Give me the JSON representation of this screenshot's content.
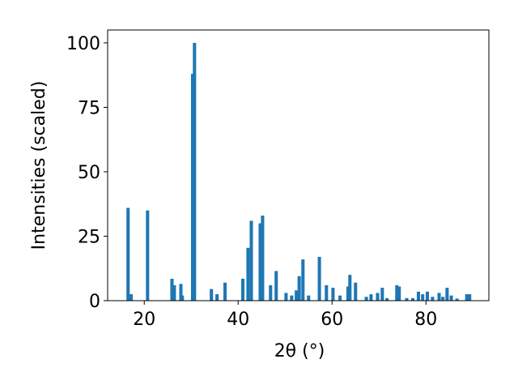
{
  "chart_data": {
    "type": "bar",
    "x": [
      16.55,
      17.2,
      20.7,
      25.9,
      26.4,
      27.8,
      28.1,
      30.3,
      30.7,
      34.3,
      35.5,
      37.2,
      41.0,
      42.1,
      42.8,
      44.7,
      45.2,
      46.9,
      48.1,
      50.2,
      51.4,
      52.4,
      53.0,
      53.8,
      55.0,
      57.3,
      58.8,
      60.2,
      61.7,
      63.4,
      63.8,
      65.0,
      67.3,
      68.3,
      69.7,
      70.7,
      71.7,
      73.8,
      74.3,
      75.9,
      77.2,
      78.4,
      79.3,
      80.3,
      81.4,
      82.8,
      83.6,
      84.5,
      85.4,
      86.6,
      88.7,
      89.3
    ],
    "values": [
      36,
      2.5,
      35,
      8.5,
      6,
      6.5,
      2,
      88,
      100,
      4.5,
      2.5,
      7,
      8.5,
      20.5,
      31,
      30,
      33,
      6,
      11.5,
      3,
      2,
      4,
      9.5,
      16,
      2,
      17,
      6,
      5,
      2,
      5.5,
      10,
      7,
      1.5,
      2.5,
      3,
      5,
      1,
      6,
      5.5,
      1,
      1,
      3.5,
      2.5,
      3.5,
      1.5,
      3,
      1.5,
      5,
      2,
      0.8,
      2.5,
      2.5
    ],
    "color": "#1f77b4",
    "x_label": "2θ (°)",
    "y_label": "Intensities (scaled)",
    "xlim": [
      12.2,
      93.4
    ],
    "ylim": [
      0,
      105
    ],
    "xticks": [
      20,
      40,
      60,
      80
    ],
    "yticks": [
      0,
      25,
      50,
      75,
      100
    ]
  }
}
